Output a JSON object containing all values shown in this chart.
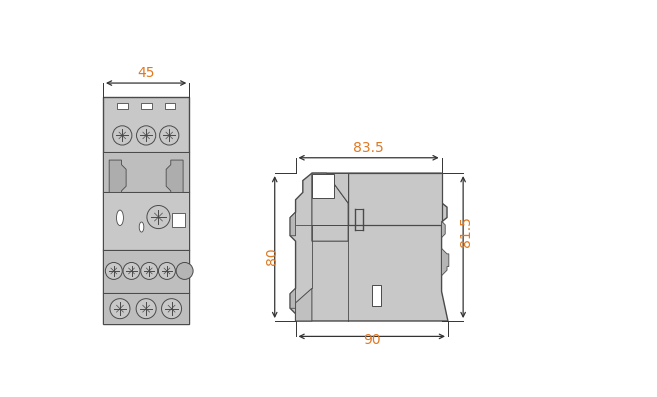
{
  "bg_color": "#ffffff",
  "gray_fill": "#c8c8c8",
  "gray_stroke": "#4a4a4a",
  "dim_color": "#e07820",
  "line_color": "#333333",
  "dim_45": "45",
  "dim_83_5": "83.5",
  "dim_80": "80",
  "dim_81_5": "81.5",
  "dim_90": "90"
}
